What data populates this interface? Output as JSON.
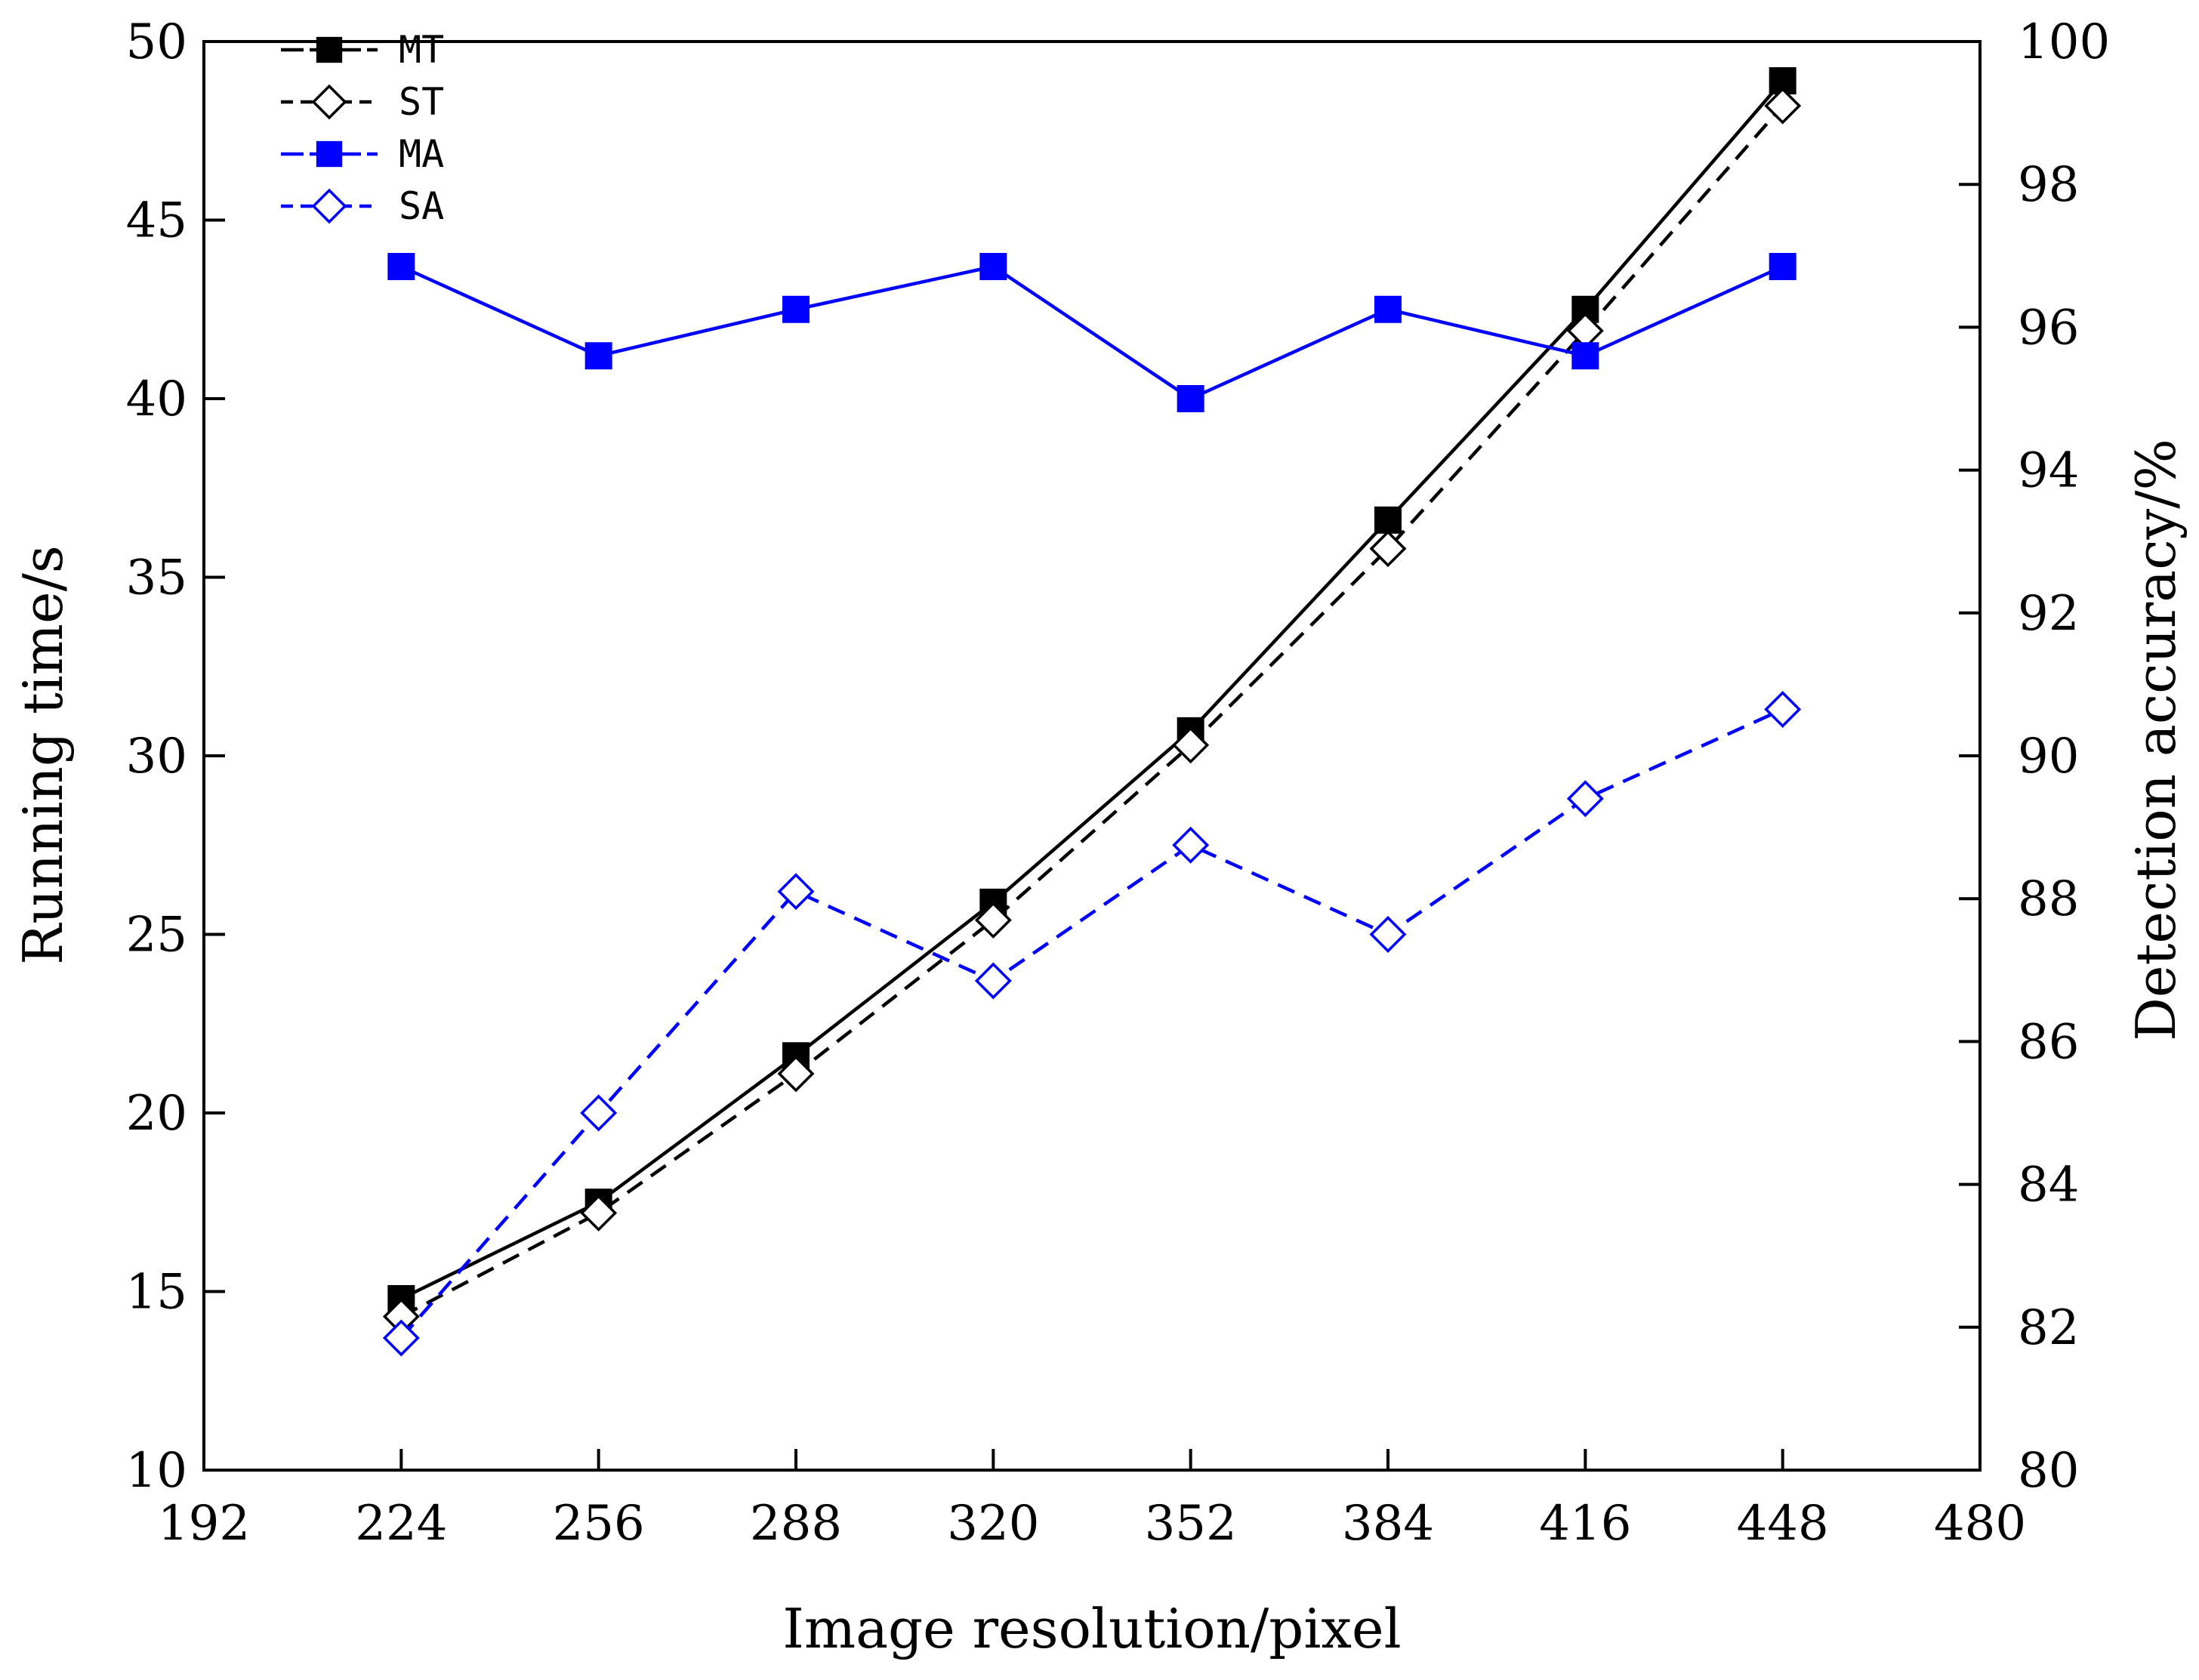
{
  "chart_data": {
    "type": "line",
    "title": "",
    "xlabel": "Image resolution/pixel",
    "ylabel_left": "Running time/s",
    "ylabel_right": "Detection accuracy/%",
    "xlim": [
      192,
      480
    ],
    "ylim_left": [
      10,
      50
    ],
    "ylim_right": [
      80,
      100
    ],
    "x_ticks": [
      "192",
      "224",
      "256",
      "288",
      "320",
      "352",
      "384",
      "416",
      "448",
      "480"
    ],
    "y_ticks_left": [
      "10",
      "15",
      "20",
      "25",
      "30",
      "35",
      "40",
      "45",
      "50"
    ],
    "y_ticks_right": [
      "80",
      "82",
      "84",
      "86",
      "88",
      "90",
      "92",
      "94",
      "96",
      "98",
      "100"
    ],
    "x": [
      224,
      256,
      288,
      320,
      352,
      384,
      416,
      448
    ],
    "legend_position": "top-left",
    "grid": false,
    "series": [
      {
        "name": "MT",
        "axis": "left",
        "color": "#000000",
        "line": "solid",
        "marker": "filled-square",
        "values": [
          14.8,
          17.5,
          21.6,
          25.9,
          30.7,
          36.6,
          42.5,
          48.9
        ]
      },
      {
        "name": "ST",
        "axis": "left",
        "color": "#000000",
        "line": "dashed",
        "marker": "open-diamond",
        "values": [
          14.3,
          17.2,
          21.1,
          25.4,
          30.3,
          35.8,
          41.9,
          48.2
        ]
      },
      {
        "name": "MA",
        "axis": "right",
        "color": "#0000ff",
        "line": "solid",
        "marker": "filled-square",
        "values": [
          96.85,
          95.6,
          96.25,
          96.85,
          95.0,
          96.25,
          95.6,
          96.85
        ]
      },
      {
        "name": "SA",
        "axis": "right",
        "color": "#0000ff",
        "line": "dashed",
        "marker": "open-diamond",
        "values": [
          81.85,
          85.0,
          88.1,
          86.85,
          88.75,
          87.5,
          89.4,
          90.65
        ]
      }
    ]
  }
}
